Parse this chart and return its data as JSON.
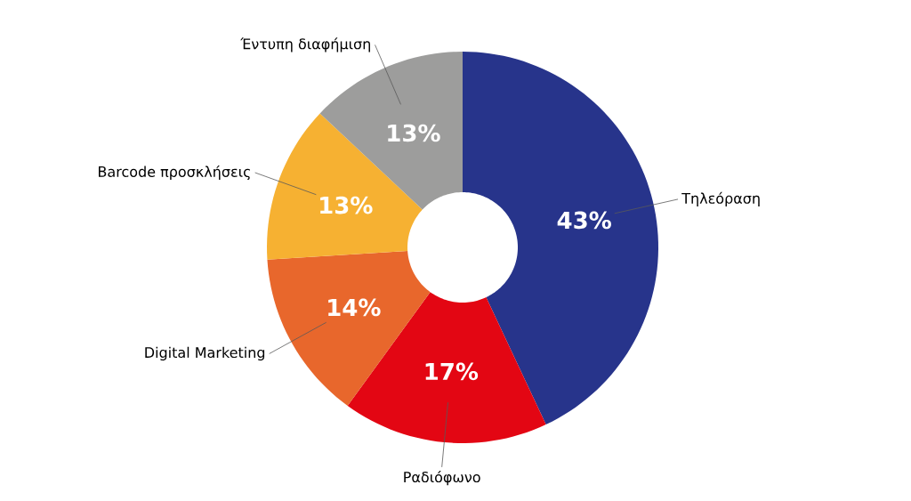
{
  "chart_data": {
    "type": "donut",
    "categories": [
      "Τηλεόραση",
      "Ραδιόφωνο",
      "Digital Marketing",
      "Barcode προσκλήσεις",
      "Έντυπη διαφήμιση"
    ],
    "values": [
      43,
      17,
      14,
      13,
      13
    ],
    "colors": [
      "#27348b",
      "#e30613",
      "#e8672c",
      "#f6b132",
      "#9d9d9c"
    ],
    "value_labels": [
      "43%",
      "17%",
      "14%",
      "13%",
      "13%"
    ]
  }
}
